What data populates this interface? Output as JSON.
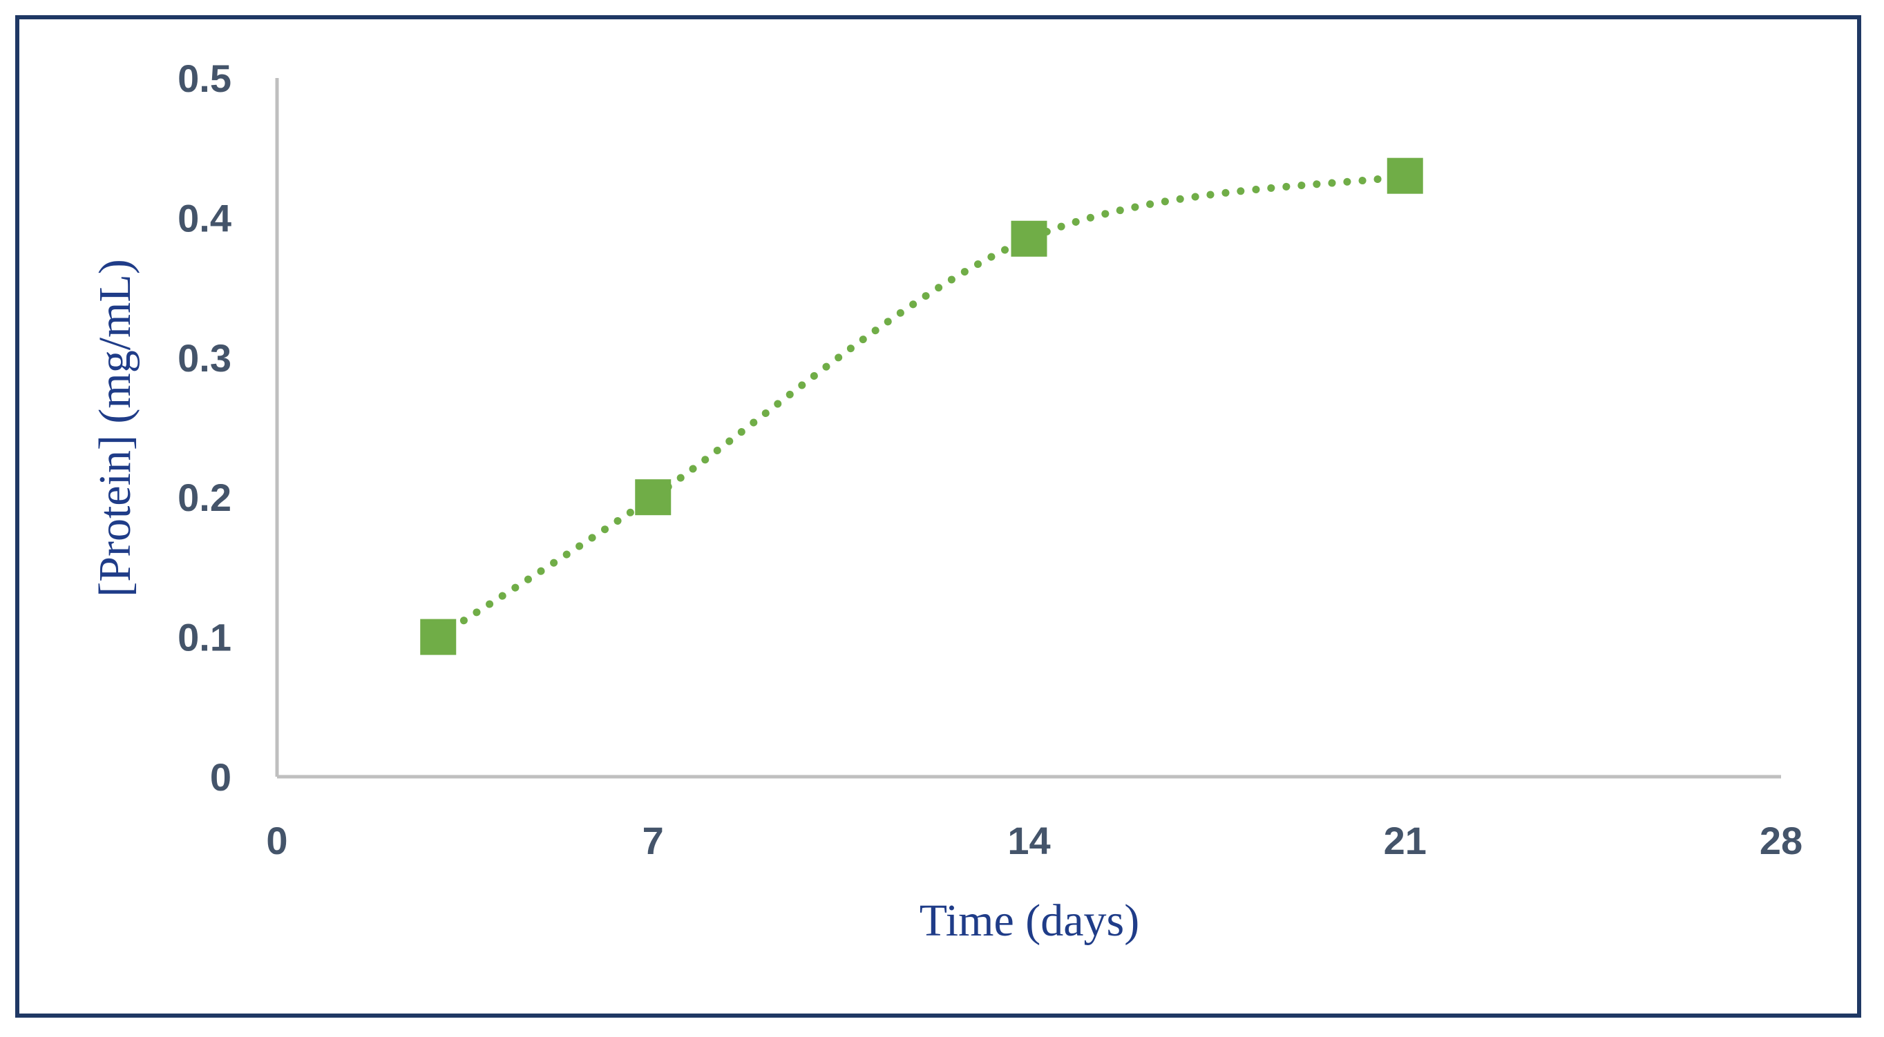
{
  "chart_data": {
    "type": "line",
    "title": "",
    "xlabel": "Time (days)",
    "ylabel": "[Protein] (mg/mL)",
    "xlim": [
      0,
      28
    ],
    "ylim": [
      0,
      0.5
    ],
    "x_ticks": [
      "0",
      "7",
      "14",
      "21",
      "28"
    ],
    "y_ticks": [
      "0",
      "0.1",
      "0.2",
      "0.3",
      "0.4",
      "0.5"
    ],
    "grid": false,
    "legend": "none",
    "series": [
      {
        "x": [
          3,
          7,
          14,
          21
        ],
        "y": [
          0.1,
          0.2,
          0.385,
          0.43
        ],
        "marker": "square",
        "line_style": "dotted",
        "color": "#70ad47"
      }
    ],
    "colors": {
      "axis_line": "#bfbfbf",
      "tick_text": "#44546a",
      "axis_title_text": "#1f3c88",
      "frame": "#1f3864"
    }
  }
}
